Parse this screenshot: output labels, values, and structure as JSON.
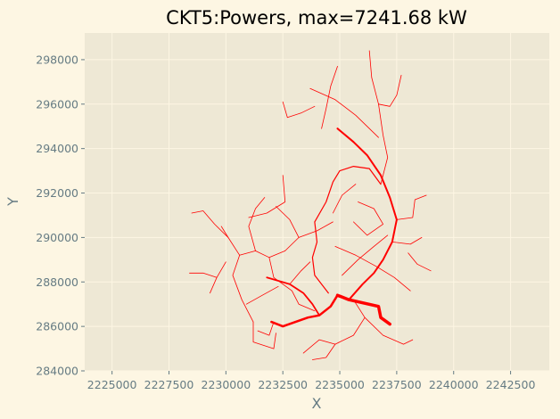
{
  "chart_data": {
    "type": "line",
    "title": "CKT5:Powers, max=7241.68 kW",
    "xlabel": "X",
    "ylabel": "Y",
    "xlim": [
      2223800,
      2244200
    ],
    "ylim": [
      284000,
      299200
    ],
    "xticks": [
      2225000,
      2227500,
      2230000,
      2232500,
      2235000,
      2237500,
      2240000,
      2242500
    ],
    "yticks": [
      284000,
      286000,
      288000,
      290000,
      292000,
      294000,
      296000,
      298000
    ],
    "grid": true,
    "colors": {
      "background": "#eee8d5",
      "grid": "#fdf6e3",
      "line": "#ff0000",
      "text": "#657b83"
    },
    "series": [
      {
        "width": 3.5,
        "points": [
          [
            2237200,
            286100
          ],
          [
            2236800,
            286400
          ],
          [
            2236700,
            286900
          ],
          [
            2235400,
            287200
          ],
          [
            2234900,
            287400
          ]
        ]
      },
      {
        "width": 2.5,
        "points": [
          [
            2234900,
            287400
          ],
          [
            2234600,
            286900
          ],
          [
            2234100,
            286500
          ],
          [
            2233600,
            286400
          ],
          [
            2232500,
            286000
          ],
          [
            2232000,
            286200
          ]
        ]
      },
      {
        "width": 2.0,
        "points": [
          [
            2235400,
            287200
          ],
          [
            2236000,
            287900
          ],
          [
            2236500,
            288400
          ],
          [
            2236900,
            289000
          ],
          [
            2237300,
            289800
          ],
          [
            2237500,
            290800
          ],
          [
            2237200,
            291800
          ],
          [
            2236800,
            292800
          ],
          [
            2236200,
            293700
          ],
          [
            2235600,
            294300
          ],
          [
            2234900,
            294900
          ]
        ]
      },
      {
        "width": 1.8,
        "points": [
          [
            2234100,
            286500
          ],
          [
            2233800,
            287000
          ],
          [
            2233400,
            287500
          ],
          [
            2232800,
            287900
          ],
          [
            2231800,
            288200
          ]
        ]
      },
      {
        "width": 1.2,
        "points": [
          [
            2234500,
            287500
          ],
          [
            2233900,
            288300
          ],
          [
            2233800,
            289100
          ],
          [
            2234000,
            289800
          ],
          [
            2233900,
            290700
          ],
          [
            2234400,
            291600
          ],
          [
            2234700,
            292500
          ],
          [
            2235000,
            293000
          ],
          [
            2235600,
            293200
          ],
          [
            2236300,
            293100
          ],
          [
            2236800,
            292400
          ]
        ]
      },
      {
        "width": 0.8,
        "points": [
          [
            2236800,
            292400
          ],
          [
            2237100,
            293600
          ],
          [
            2236900,
            294600
          ],
          [
            2236700,
            296000
          ],
          [
            2236400,
            297200
          ],
          [
            2236300,
            298400
          ]
        ]
      },
      {
        "width": 0.8,
        "points": [
          [
            2236700,
            294500
          ],
          [
            2235700,
            295500
          ],
          [
            2234800,
            296200
          ],
          [
            2233700,
            296700
          ]
        ]
      },
      {
        "width": 0.8,
        "points": [
          [
            2231200,
            286200
          ],
          [
            2231200,
            285300
          ],
          [
            2232100,
            285000
          ],
          [
            2232200,
            285700
          ]
        ]
      },
      {
        "width": 0.8,
        "points": [
          [
            2231200,
            286200
          ],
          [
            2230700,
            287200
          ],
          [
            2230300,
            288300
          ],
          [
            2230600,
            289200
          ],
          [
            2230100,
            290000
          ],
          [
            2229800,
            290500
          ]
        ]
      },
      {
        "width": 0.8,
        "points": [
          [
            2230600,
            289200
          ],
          [
            2231300,
            289400
          ],
          [
            2231900,
            289100
          ],
          [
            2232600,
            289400
          ]
        ]
      },
      {
        "width": 0.8,
        "points": [
          [
            2230100,
            290000
          ],
          [
            2229500,
            290600
          ],
          [
            2229000,
            291200
          ],
          [
            2228500,
            291100
          ]
        ]
      },
      {
        "width": 0.8,
        "points": [
          [
            2231300,
            289400
          ],
          [
            2231000,
            290500
          ],
          [
            2231300,
            291300
          ],
          [
            2231700,
            291800
          ]
        ]
      },
      {
        "width": 0.8,
        "points": [
          [
            2232600,
            289400
          ],
          [
            2233200,
            290000
          ],
          [
            2232800,
            290800
          ],
          [
            2232200,
            291400
          ]
        ]
      },
      {
        "width": 0.8,
        "points": [
          [
            2233200,
            290000
          ],
          [
            2234000,
            290300
          ],
          [
            2234700,
            290700
          ]
        ]
      },
      {
        "width": 0.8,
        "points": [
          [
            2231900,
            289100
          ],
          [
            2232100,
            288200
          ],
          [
            2232900,
            287600
          ],
          [
            2233200,
            287000
          ],
          [
            2233900,
            286700
          ]
        ]
      },
      {
        "width": 0.8,
        "points": [
          [
            2232800,
            287900
          ],
          [
            2233300,
            288500
          ],
          [
            2233700,
            288900
          ]
        ]
      },
      {
        "width": 0.8,
        "points": [
          [
            2235600,
            287200
          ],
          [
            2236100,
            286400
          ],
          [
            2235600,
            285600
          ],
          [
            2234800,
            285200
          ],
          [
            2234100,
            285400
          ],
          [
            2233400,
            284800
          ]
        ]
      },
      {
        "width": 0.8,
        "points": [
          [
            2236100,
            286400
          ],
          [
            2236900,
            285600
          ],
          [
            2237800,
            285200
          ],
          [
            2238200,
            285400
          ]
        ]
      },
      {
        "width": 0.8,
        "points": [
          [
            2234800,
            285200
          ],
          [
            2234400,
            284600
          ],
          [
            2233800,
            284500
          ]
        ]
      },
      {
        "width": 0.8,
        "points": [
          [
            2235100,
            288300
          ],
          [
            2235800,
            289000
          ],
          [
            2236500,
            289600
          ],
          [
            2237100,
            290100
          ]
        ]
      },
      {
        "width": 0.8,
        "points": [
          [
            2234800,
            289600
          ],
          [
            2235700,
            289200
          ],
          [
            2236600,
            288700
          ],
          [
            2237400,
            288200
          ],
          [
            2238100,
            287600
          ]
        ]
      },
      {
        "width": 0.8,
        "points": [
          [
            2237300,
            289800
          ],
          [
            2238100,
            289700
          ],
          [
            2238600,
            290000
          ]
        ]
      },
      {
        "width": 0.8,
        "points": [
          [
            2237500,
            290800
          ],
          [
            2238200,
            290900
          ],
          [
            2238300,
            291700
          ],
          [
            2238800,
            291900
          ]
        ]
      },
      {
        "width": 0.8,
        "points": [
          [
            2235600,
            290700
          ],
          [
            2236200,
            290100
          ],
          [
            2236900,
            290600
          ],
          [
            2236500,
            291300
          ],
          [
            2235800,
            291600
          ]
        ]
      },
      {
        "width": 0.8,
        "points": [
          [
            2235700,
            292400
          ],
          [
            2235100,
            291900
          ],
          [
            2234700,
            291100
          ]
        ]
      },
      {
        "width": 0.8,
        "points": [
          [
            2234200,
            294900
          ],
          [
            2234400,
            295800
          ],
          [
            2234600,
            296800
          ],
          [
            2234900,
            297700
          ]
        ]
      },
      {
        "width": 0.8,
        "points": [
          [
            2233900,
            295900
          ],
          [
            2233300,
            295600
          ],
          [
            2232700,
            295400
          ],
          [
            2232500,
            296100
          ]
        ]
      },
      {
        "width": 0.8,
        "points": [
          [
            2236700,
            296000
          ],
          [
            2237200,
            295900
          ],
          [
            2237500,
            296400
          ],
          [
            2237700,
            297300
          ]
        ]
      },
      {
        "width": 0.8,
        "points": [
          [
            2232500,
            292800
          ],
          [
            2232600,
            291600
          ],
          [
            2231800,
            291100
          ],
          [
            2231000,
            290900
          ]
        ]
      },
      {
        "width": 0.8,
        "points": [
          [
            2229300,
            287500
          ],
          [
            2229600,
            288200
          ],
          [
            2230000,
            288900
          ]
        ]
      },
      {
        "width": 0.8,
        "points": [
          [
            2228400,
            288400
          ],
          [
            2229000,
            288400
          ],
          [
            2229600,
            288200
          ]
        ]
      },
      {
        "width": 0.8,
        "points": [
          [
            2230900,
            287000
          ],
          [
            2231600,
            287400
          ],
          [
            2232300,
            287800
          ]
        ]
      },
      {
        "width": 0.8,
        "points": [
          [
            2232100,
            286200
          ],
          [
            2231900,
            285600
          ],
          [
            2231400,
            285800
          ]
        ]
      },
      {
        "width": 0.8,
        "points": [
          [
            2238000,
            289300
          ],
          [
            2238400,
            288800
          ],
          [
            2239000,
            288500
          ]
        ]
      }
    ]
  }
}
